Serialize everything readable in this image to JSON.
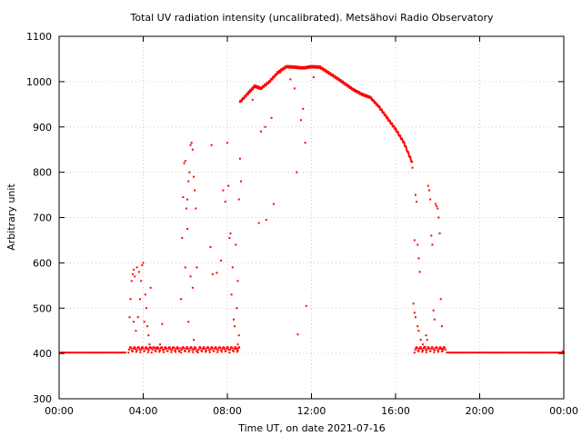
{
  "chart_data": {
    "type": "scatter",
    "title": "Total UV radiation intensity (uncalibrated). Metsähovi Radio Observatory",
    "xlabel": "Time UT, on date 2021-07-16",
    "ylabel": "Arbitrary unit",
    "xlim_hours": [
      0,
      24
    ],
    "ylim": [
      300,
      1100
    ],
    "x_ticks": [
      {
        "hour": 0,
        "label": "00:00"
      },
      {
        "hour": 4,
        "label": "04:00"
      },
      {
        "hour": 8,
        "label": "08:00"
      },
      {
        "hour": 12,
        "label": "12:00"
      },
      {
        "hour": 16,
        "label": "16:00"
      },
      {
        "hour": 20,
        "label": "20:00"
      },
      {
        "hour": 24,
        "label": "00:00"
      }
    ],
    "y_ticks": [
      300,
      400,
      500,
      600,
      700,
      800,
      900,
      1000,
      1100
    ],
    "grid": true,
    "marker_color": "#ff0000",
    "baseline_value": 402,
    "baseline_ranges_hours": [
      [
        0,
        3.2
      ],
      [
        18.4,
        24
      ]
    ],
    "envelope": {
      "hours": [
        8.6,
        9.0,
        9.3,
        9.6,
        10.0,
        10.4,
        10.8,
        11.2,
        11.6,
        12.0,
        12.4,
        12.8,
        13.2,
        13.6,
        14.0,
        14.4,
        14.8,
        15.2,
        15.6,
        16.0,
        16.4,
        16.8
      ],
      "values": [
        955,
        975,
        990,
        985,
        1000,
        1020,
        1033,
        1032,
        1030,
        1033,
        1032,
        1020,
        1008,
        995,
        982,
        972,
        965,
        945,
        920,
        895,
        865,
        820
      ]
    },
    "scatter_points": [
      [
        3.35,
        480
      ],
      [
        3.4,
        520
      ],
      [
        3.45,
        560
      ],
      [
        3.5,
        575
      ],
      [
        3.55,
        585
      ],
      [
        3.6,
        570
      ],
      [
        3.7,
        590
      ],
      [
        3.8,
        580
      ],
      [
        3.85,
        520
      ],
      [
        3.9,
        560
      ],
      [
        3.95,
        595
      ],
      [
        4.0,
        600
      ],
      [
        4.05,
        470
      ],
      [
        4.1,
        530
      ],
      [
        4.15,
        500
      ],
      [
        4.2,
        460
      ],
      [
        4.25,
        440
      ],
      [
        4.3,
        420
      ],
      [
        3.75,
        480
      ],
      [
        3.65,
        450
      ],
      [
        3.55,
        470
      ],
      [
        4.35,
        545
      ],
      [
        4.6,
        412
      ],
      [
        4.9,
        465
      ],
      [
        4.8,
        420
      ],
      [
        5.8,
        520
      ],
      [
        5.85,
        655
      ],
      [
        5.9,
        745
      ],
      [
        5.95,
        820
      ],
      [
        6.0,
        825
      ],
      [
        6.05,
        720
      ],
      [
        6.1,
        740
      ],
      [
        6.15,
        780
      ],
      [
        6.2,
        800
      ],
      [
        6.25,
        860
      ],
      [
        6.3,
        865
      ],
      [
        6.35,
        850
      ],
      [
        6.4,
        790
      ],
      [
        6.45,
        760
      ],
      [
        6.5,
        720
      ],
      [
        6.55,
        590
      ],
      [
        6.0,
        590
      ],
      [
        6.1,
        675
      ],
      [
        6.15,
        470
      ],
      [
        6.25,
        570
      ],
      [
        6.35,
        545
      ],
      [
        6.5,
        410
      ],
      [
        6.4,
        430
      ],
      [
        7.2,
        635
      ],
      [
        7.25,
        860
      ],
      [
        7.3,
        575
      ],
      [
        7.5,
        578
      ],
      [
        7.7,
        605
      ],
      [
        7.8,
        760
      ],
      [
        7.9,
        735
      ],
      [
        8.0,
        865
      ],
      [
        8.05,
        770
      ],
      [
        8.1,
        655
      ],
      [
        8.15,
        665
      ],
      [
        8.2,
        530
      ],
      [
        8.25,
        590
      ],
      [
        8.3,
        475
      ],
      [
        8.35,
        460
      ],
      [
        8.4,
        640
      ],
      [
        8.45,
        500
      ],
      [
        8.5,
        560
      ],
      [
        8.55,
        740
      ],
      [
        8.6,
        830
      ],
      [
        8.65,
        780
      ],
      [
        8.5,
        420
      ],
      [
        8.55,
        440
      ],
      [
        8.45,
        410
      ],
      [
        9.2,
        960
      ],
      [
        9.5,
        688
      ],
      [
        9.6,
        890
      ],
      [
        9.8,
        900
      ],
      [
        9.85,
        695
      ],
      [
        10.1,
        920
      ],
      [
        10.2,
        730
      ],
      [
        10.5,
        1020
      ],
      [
        11.0,
        1005
      ],
      [
        11.2,
        985
      ],
      [
        11.3,
        800
      ],
      [
        11.35,
        442
      ],
      [
        11.5,
        915
      ],
      [
        11.6,
        940
      ],
      [
        11.7,
        865
      ],
      [
        11.75,
        505
      ],
      [
        12.1,
        1010
      ],
      [
        16.8,
        810
      ],
      [
        16.9,
        650
      ],
      [
        16.95,
        750
      ],
      [
        17.0,
        735
      ],
      [
        17.05,
        640
      ],
      [
        17.1,
        610
      ],
      [
        17.15,
        580
      ],
      [
        16.85,
        510
      ],
      [
        16.9,
        490
      ],
      [
        16.95,
        480
      ],
      [
        17.05,
        460
      ],
      [
        17.1,
        450
      ],
      [
        17.2,
        430
      ],
      [
        17.3,
        420
      ],
      [
        17.4,
        415
      ],
      [
        17.55,
        770
      ],
      [
        17.6,
        760
      ],
      [
        17.65,
        740
      ],
      [
        17.7,
        660
      ],
      [
        17.75,
        640
      ],
      [
        17.8,
        495
      ],
      [
        17.85,
        475
      ],
      [
        17.9,
        730
      ],
      [
        17.95,
        725
      ],
      [
        18.0,
        720
      ],
      [
        18.05,
        700
      ],
      [
        18.1,
        665
      ],
      [
        18.15,
        520
      ],
      [
        18.2,
        460
      ],
      [
        17.5,
        430
      ],
      [
        17.45,
        440
      ],
      [
        18.25,
        410
      ],
      [
        23.95,
        405
      ],
      [
        24.0,
        402
      ]
    ]
  }
}
